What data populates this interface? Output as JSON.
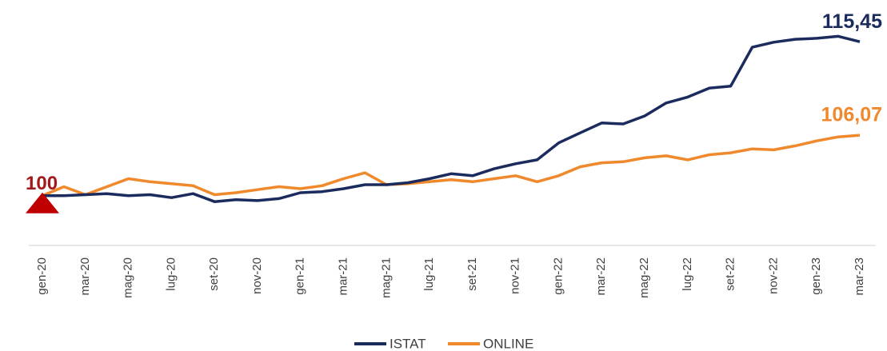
{
  "chart_data": {
    "type": "line",
    "categories": [
      "gen-20",
      null,
      "mar-20",
      null,
      "mag-20",
      null,
      "lug-20",
      null,
      "set-20",
      null,
      "nov-20",
      null,
      "gen-21",
      null,
      "mar-21",
      null,
      "mag-21",
      null,
      "lug-21",
      null,
      "set-21",
      null,
      "nov-21",
      null,
      "gen-22",
      null,
      "mar-22",
      null,
      "mag-22",
      null,
      "lug-22",
      null,
      "set-22",
      null,
      "nov-22",
      null,
      "gen-23",
      null,
      "mar-23"
    ],
    "series": [
      {
        "name": "ISTAT",
        "color": "#1b2b5e",
        "values": [
          100,
          100,
          100.1,
          100.2,
          100,
          100.1,
          99.8,
          100.2,
          99.4,
          99.6,
          99.5,
          99.7,
          100.3,
          100.4,
          100.7,
          101.1,
          101.1,
          101.3,
          101.7,
          102.2,
          102.0,
          102.7,
          103.2,
          103.6,
          105.3,
          106.3,
          107.3,
          107.2,
          108.0,
          109.3,
          109.9,
          110.8,
          111.0,
          114.9,
          115.4,
          115.7,
          115.8,
          116.0,
          115.45
        ],
        "value_labels": [
          null,
          null,
          null,
          null,
          null,
          null,
          null,
          null,
          null,
          null,
          null,
          null,
          null,
          null,
          null,
          null,
          null,
          null,
          null,
          null,
          null,
          null,
          null,
          null,
          null,
          null,
          null,
          null,
          null,
          null,
          null,
          null,
          null,
          null,
          null,
          null,
          null,
          null,
          "115,45"
        ]
      },
      {
        "name": "ONLINE",
        "color": "#f0892c",
        "values": [
          100,
          100.9,
          100.1,
          100.9,
          101.7,
          101.4,
          101.2,
          101.0,
          100.1,
          100.3,
          100.6,
          100.9,
          100.7,
          101.0,
          101.7,
          102.3,
          101.1,
          101.2,
          101.4,
          101.6,
          101.4,
          101.7,
          102.0,
          101.4,
          102.0,
          102.9,
          103.3,
          103.4,
          103.8,
          104.0,
          103.6,
          104.1,
          104.3,
          104.7,
          104.6,
          105.0,
          105.5,
          105.9,
          106.07
        ],
        "value_labels": [
          null,
          null,
          null,
          null,
          null,
          null,
          null,
          null,
          null,
          null,
          null,
          null,
          null,
          null,
          null,
          null,
          null,
          null,
          null,
          null,
          null,
          null,
          null,
          null,
          null,
          null,
          null,
          null,
          null,
          null,
          null,
          null,
          null,
          null,
          null,
          null,
          null,
          null,
          "106,07"
        ]
      }
    ],
    "start_marker": {
      "value": 100,
      "label": "100",
      "color": "#c00000"
    },
    "ylim": [
      95,
      119
    ],
    "legend": "bottom"
  }
}
